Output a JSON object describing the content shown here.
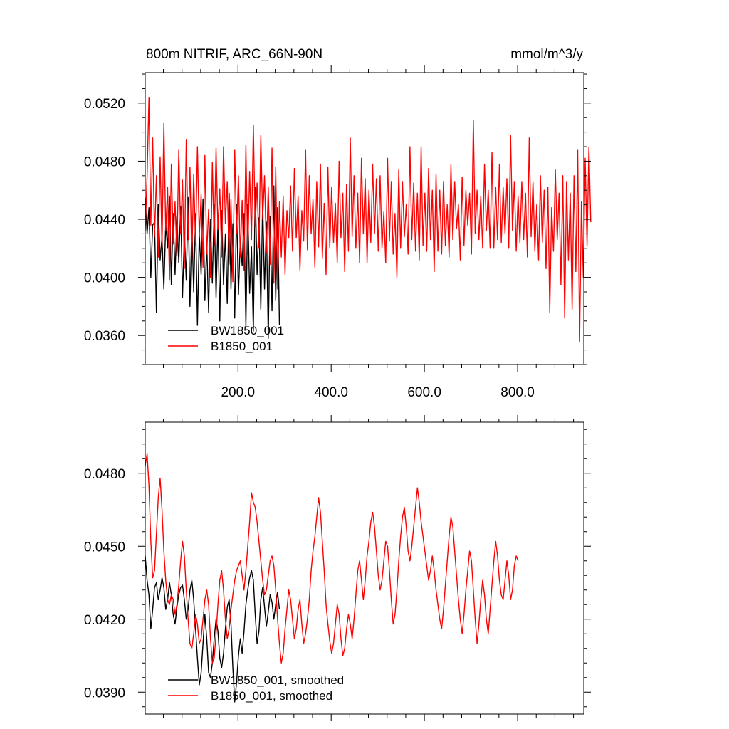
{
  "chart_data": [
    {
      "type": "line",
      "title_left": "800m NITRIF, ARC_66N-90N",
      "title_right": "mmol/m^3/y",
      "xlim": [
        1,
        942
      ],
      "ylim": [
        0.034,
        0.0541
      ],
      "xticks": [
        200,
        400,
        600,
        800
      ],
      "xtick_labels": [
        "200.0",
        "400.0",
        "600.0",
        "800.0"
      ],
      "xtick_minor_step": 40,
      "yticks": [
        0.036,
        0.04,
        0.044,
        0.048,
        0.052
      ],
      "ytick_labels": [
        "0.0360",
        "0.0400",
        "0.0440",
        "0.0480",
        "0.0520"
      ],
      "ytick_minor_step": 0.001,
      "legend_position": "bottom-left",
      "series": [
        {
          "name": "BW1850_001",
          "color": "#000000",
          "x_start": 1,
          "x_step": 4,
          "values": [
            0.0455,
            0.043,
            0.0448,
            0.04,
            0.0436,
            0.0438,
            0.0376,
            0.045,
            0.0412,
            0.0428,
            0.0392,
            0.0437,
            0.042,
            0.0456,
            0.0395,
            0.0444,
            0.0402,
            0.0442,
            0.041,
            0.0449,
            0.0386,
            0.0431,
            0.0398,
            0.0455,
            0.038,
            0.0437,
            0.039,
            0.0444,
            0.0367,
            0.043,
            0.0402,
            0.0454,
            0.0384,
            0.0424,
            0.0376,
            0.044,
            0.0396,
            0.045,
            0.0386,
            0.0438,
            0.037,
            0.0446,
            0.0395,
            0.043,
            0.0382,
            0.0458,
            0.0392,
            0.0437,
            0.0372,
            0.045,
            0.0388,
            0.0426,
            0.0408,
            0.0444,
            0.0366,
            0.045,
            0.0389,
            0.0421,
            0.0363,
            0.0462,
            0.0402,
            0.0441,
            0.0378,
            0.0452,
            0.0392,
            0.0438,
            0.0358,
            0.0442,
            0.0377,
            0.0463,
            0.0384,
            0.0448,
            0.0367
          ]
        },
        {
          "name": "B1850_001",
          "color": "#ff0000",
          "x_start": 1,
          "x_step": 4,
          "values": [
            0.0432,
            0.047,
            0.0524,
            0.0436,
            0.0496,
            0.0428,
            0.047,
            0.0414,
            0.0483,
            0.042,
            0.0506,
            0.0432,
            0.0462,
            0.0398,
            0.0478,
            0.0423,
            0.0452,
            0.0415,
            0.0488,
            0.043,
            0.0467,
            0.0406,
            0.0495,
            0.0426,
            0.0476,
            0.0412,
            0.0471,
            0.0422,
            0.049,
            0.0428,
            0.0457,
            0.0407,
            0.0484,
            0.0416,
            0.0447,
            0.04,
            0.0479,
            0.0422,
            0.0489,
            0.0433,
            0.0461,
            0.0414,
            0.049,
            0.0437,
            0.0466,
            0.0409,
            0.0454,
            0.0397,
            0.0488,
            0.043,
            0.047,
            0.0414,
            0.0453,
            0.0405,
            0.0491,
            0.0416,
            0.0473,
            0.0426,
            0.0505,
            0.0435,
            0.0465,
            0.042,
            0.0498,
            0.044,
            0.047,
            0.0417,
            0.0462,
            0.0409,
            0.0489,
            0.0396,
            0.0476,
            0.0392,
            0.0452,
            0.0414,
            0.0456,
            0.0402,
            0.0446,
            0.0427,
            0.0463,
            0.0418,
            0.0475,
            0.0427,
            0.0456,
            0.0405,
            0.0446,
            0.0425,
            0.0488,
            0.0419,
            0.047,
            0.043,
            0.0454,
            0.0407,
            0.0466,
            0.0421,
            0.0478,
            0.0413,
            0.0451,
            0.0402,
            0.0476,
            0.042,
            0.0462,
            0.0424,
            0.0451,
            0.041,
            0.048,
            0.0427,
            0.0458,
            0.0404,
            0.0464,
            0.0418,
            0.0496,
            0.0428,
            0.047,
            0.042,
            0.0458,
            0.041,
            0.0482,
            0.043,
            0.0468,
            0.041,
            0.046,
            0.0424,
            0.0478,
            0.043,
            0.0468,
            0.0418,
            0.047,
            0.042,
            0.0445,
            0.041,
            0.0482,
            0.0425,
            0.0466,
            0.0416,
            0.0444,
            0.04,
            0.0474,
            0.042,
            0.0466,
            0.0428,
            0.045,
            0.0416,
            0.049,
            0.0426,
            0.0465,
            0.0418,
            0.0458,
            0.0412,
            0.049,
            0.0422,
            0.0458,
            0.0418,
            0.0475,
            0.0426,
            0.046,
            0.0404,
            0.0471,
            0.0418,
            0.046,
            0.0416,
            0.0466,
            0.0422,
            0.045,
            0.0414,
            0.0478,
            0.0426,
            0.0466,
            0.0434,
            0.045,
            0.0412,
            0.0469,
            0.0422,
            0.046,
            0.0436,
            0.0458,
            0.0416,
            0.0508,
            0.043,
            0.046,
            0.0426,
            0.0456,
            0.042,
            0.0478,
            0.0432,
            0.046,
            0.042,
            0.0486,
            0.042,
            0.0462,
            0.0426,
            0.0478,
            0.0424,
            0.0462,
            0.043,
            0.0468,
            0.042,
            0.0498,
            0.0432,
            0.0466,
            0.0418,
            0.0456,
            0.0424,
            0.0466,
            0.0426,
            0.0458,
            0.0414,
            0.0496,
            0.0428,
            0.0466,
            0.0418,
            0.045,
            0.0412,
            0.047,
            0.0424,
            0.046,
            0.0406,
            0.0462,
            0.0376,
            0.0448,
            0.0418,
            0.0474,
            0.0426,
            0.0458,
            0.0395,
            0.047,
            0.0372,
            0.0466,
            0.0412,
            0.0458,
            0.0378,
            0.047,
            0.0404,
            0.0488,
            0.0356,
            0.0452,
            0.04,
            0.0482,
            0.0422,
            0.049,
            0.0438
          ]
        }
      ]
    },
    {
      "type": "line",
      "xlim": [
        1,
        942
      ],
      "ylim": [
        0.0381,
        0.0501
      ],
      "xticks": [
        200,
        400,
        600,
        800
      ],
      "xtick_minor_step": 40,
      "yticks": [
        0.039,
        0.042,
        0.045,
        0.048
      ],
      "ytick_labels": [
        "0.0390",
        "0.0420",
        "0.0450",
        "0.0480"
      ],
      "ytick_minor_step": 0.0006,
      "legend_position": "bottom-left",
      "series": [
        {
          "name": "BW1850_001, smoothed",
          "color": "#000000",
          "x_start": 1,
          "x_step": 4,
          "values": [
            0.0446,
            0.0436,
            0.043,
            0.0416,
            0.0424,
            0.0433,
            0.0435,
            0.0428,
            0.0432,
            0.0437,
            0.0433,
            0.0424,
            0.0428,
            0.0435,
            0.043,
            0.0422,
            0.0418,
            0.0425,
            0.043,
            0.0433,
            0.0434,
            0.0428,
            0.042,
            0.0424,
            0.0432,
            0.0436,
            0.0428,
            0.0416,
            0.0404,
            0.0393,
            0.0398,
            0.041,
            0.0422,
            0.0412,
            0.0398,
            0.0396,
            0.0402,
            0.0412,
            0.042,
            0.0415,
            0.0404,
            0.04,
            0.0406,
            0.0416,
            0.0425,
            0.0428,
            0.0418,
            0.04,
            0.0386,
            0.0394,
            0.0405,
            0.0412,
            0.0406,
            0.0415,
            0.0426,
            0.0432,
            0.0437,
            0.044,
            0.0436,
            0.0422,
            0.041,
            0.0415,
            0.0428,
            0.0433,
            0.0425,
            0.0417,
            0.0423,
            0.043,
            0.0427,
            0.042,
            0.0426,
            0.0431,
            0.0424
          ]
        },
        {
          "name": "B1850_001, smoothed",
          "color": "#ff0000",
          "x_start": 1,
          "x_step": 4,
          "values": [
            0.0483,
            0.0488,
            0.0475,
            0.0452,
            0.0437,
            0.044,
            0.0455,
            0.047,
            0.0478,
            0.0465,
            0.0448,
            0.0436,
            0.0428,
            0.0426,
            0.043,
            0.0428,
            0.0422,
            0.0426,
            0.0434,
            0.0444,
            0.0452,
            0.0446,
            0.0432,
            0.042,
            0.041,
            0.0408,
            0.0414,
            0.0422,
            0.0418,
            0.041,
            0.0412,
            0.042,
            0.0428,
            0.0432,
            0.0426,
            0.0412,
            0.0402,
            0.0404,
            0.0414,
            0.0426,
            0.0436,
            0.044,
            0.0432,
            0.042,
            0.0412,
            0.0416,
            0.0424,
            0.043,
            0.0436,
            0.044,
            0.0442,
            0.0444,
            0.0438,
            0.0432,
            0.044,
            0.045,
            0.046,
            0.0472,
            0.0468,
            0.0466,
            0.046,
            0.0452,
            0.0444,
            0.0436,
            0.043,
            0.0432,
            0.0438,
            0.0444,
            0.0446,
            0.0442,
            0.0432,
            0.042,
            0.041,
            0.0402,
            0.0406,
            0.0416,
            0.0424,
            0.0432,
            0.0428,
            0.042,
            0.0412,
            0.0416,
            0.0424,
            0.0428,
            0.0418,
            0.041,
            0.0414,
            0.042,
            0.0428,
            0.044,
            0.0448,
            0.0454,
            0.0462,
            0.047,
            0.0464,
            0.0452,
            0.044,
            0.0426,
            0.0418,
            0.0411,
            0.0406,
            0.041,
            0.0418,
            0.0426,
            0.0422,
            0.0412,
            0.0405,
            0.0408,
            0.0416,
            0.0422,
            0.0418,
            0.0412,
            0.042,
            0.043,
            0.044,
            0.0444,
            0.0436,
            0.0428,
            0.0436,
            0.0446,
            0.0452,
            0.046,
            0.0464,
            0.0458,
            0.0448,
            0.0438,
            0.0432,
            0.0436,
            0.0444,
            0.0452,
            0.045,
            0.044,
            0.0428,
            0.0418,
            0.0422,
            0.0432,
            0.0444,
            0.0454,
            0.0462,
            0.0466,
            0.0458,
            0.0448,
            0.0444,
            0.045,
            0.0458,
            0.0466,
            0.0474,
            0.0468,
            0.046,
            0.0454,
            0.0448,
            0.0442,
            0.0436,
            0.044,
            0.0446,
            0.044,
            0.0432,
            0.0426,
            0.042,
            0.0416,
            0.0424,
            0.0434,
            0.0444,
            0.0454,
            0.0462,
            0.0458,
            0.0448,
            0.0438,
            0.0428,
            0.042,
            0.0414,
            0.0422,
            0.0432,
            0.044,
            0.0448,
            0.0444,
            0.0432,
            0.042,
            0.041,
            0.0418,
            0.0428,
            0.0436,
            0.043,
            0.042,
            0.0414,
            0.0424,
            0.0434,
            0.0444,
            0.0452,
            0.0446,
            0.0436,
            0.043,
            0.0428,
            0.0436,
            0.0444,
            0.0438,
            0.0428,
            0.0432,
            0.0442,
            0.0446,
            0.0444
          ]
        }
      ]
    }
  ]
}
